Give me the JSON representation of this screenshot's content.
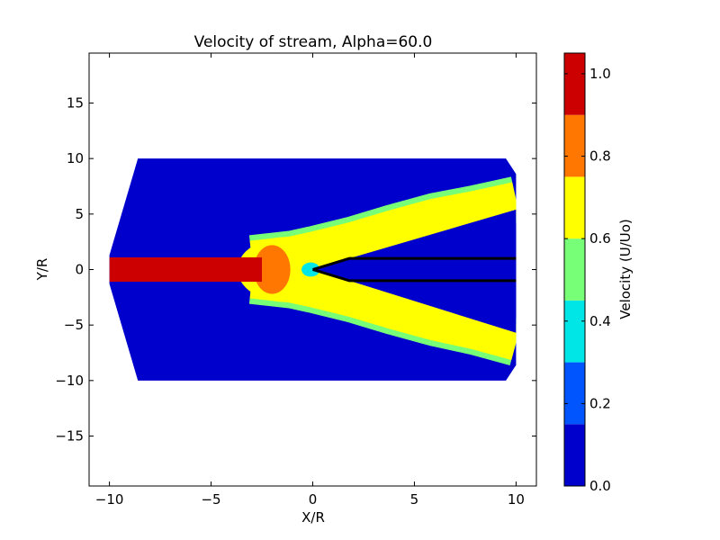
{
  "chart_data": {
    "type": "heatmap",
    "title": "Velocity of stream, Alpha=60.0",
    "xlabel": "X/R",
    "ylabel": "Y/R",
    "xlim": [
      -11,
      11
    ],
    "ylim": [
      -19.5,
      19.5
    ],
    "x_ticks": [
      -10,
      -5,
      0,
      5,
      10
    ],
    "x_tick_labels": [
      "−10",
      "−5",
      "0",
      "5",
      "10"
    ],
    "y_ticks": [
      -15,
      -10,
      -5,
      0,
      5,
      10,
      15
    ],
    "y_tick_labels": [
      "−15",
      "−10",
      "−5",
      "0",
      "5",
      "10",
      "15"
    ],
    "colorbar": {
      "label": "Velocity (U/Uo)",
      "range": [
        0.0,
        1.05
      ],
      "ticks": [
        0.0,
        0.2,
        0.4,
        0.6,
        0.8,
        1.0
      ],
      "tick_labels": [
        "0.0",
        "0.2",
        "0.4",
        "0.6",
        "0.8",
        "1.0"
      ],
      "levels": [
        0.0,
        0.15,
        0.3,
        0.45,
        0.6,
        0.75,
        0.9,
        1.05
      ],
      "colors": [
        "#0000cc",
        "#0055ff",
        "#00e5e5",
        "#77ff77",
        "#ffff00",
        "#ff7700",
        "#cc0000"
      ]
    },
    "domain_outline": [
      [
        -8.6,
        10
      ],
      [
        9.5,
        10
      ],
      [
        10,
        8.6
      ],
      [
        10,
        -8.6
      ],
      [
        9.5,
        -10
      ],
      [
        -8.6,
        -10
      ],
      [
        -10,
        -1.3
      ],
      [
        -10,
        1.3
      ]
    ],
    "core_jet": {
      "x": [
        -10,
        -2.5
      ],
      "y": [
        -1.1,
        1.1
      ],
      "value": 1.0
    },
    "transition_zone": {
      "center": [
        -2,
        0
      ],
      "value": 0.8
    },
    "upper_branch_center": [
      [
        -3,
        1
      ],
      [
        -1,
        1.4
      ],
      [
        0,
        1.8
      ],
      [
        2,
        2.7
      ],
      [
        4,
        3.8
      ],
      [
        6,
        4.8
      ],
      [
        8,
        5.5
      ],
      [
        10,
        6.3
      ]
    ],
    "lower_branch_center": [
      [
        -3,
        -1
      ],
      [
        -1,
        -1.4
      ],
      [
        0,
        -1.8
      ],
      [
        2,
        -2.7
      ],
      [
        4,
        -3.8
      ],
      [
        6,
        -4.8
      ],
      [
        8,
        -5.6
      ],
      [
        10,
        -6.6
      ]
    ],
    "branch_value": 0.7,
    "background_value": 0.05,
    "wedge_lines": [
      [
        [
          0,
          0
        ],
        [
          1.8,
          1.0
        ],
        [
          10,
          1.0
        ]
      ],
      [
        [
          0,
          0
        ],
        [
          1.8,
          -1.0
        ],
        [
          10,
          -1.0
        ]
      ]
    ]
  }
}
